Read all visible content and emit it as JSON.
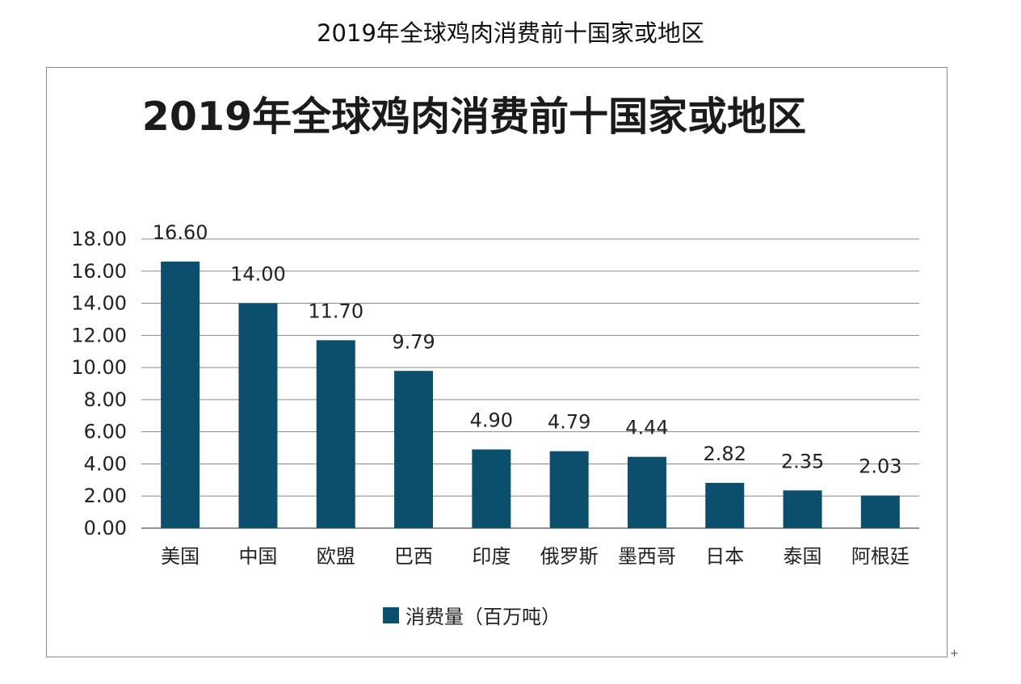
{
  "page_title": "2019年全球鸡肉消费前十国家或地区",
  "chart_data": {
    "type": "bar",
    "title": "2019年全球鸡肉消费前十国家或地区",
    "categories": [
      "美国",
      "中国",
      "欧盟",
      "巴西",
      "印度",
      "俄罗斯",
      "墨西哥",
      "日本",
      "泰国",
      "阿根廷"
    ],
    "series": [
      {
        "name": "消费量（百万吨）",
        "values": [
          16.6,
          14.0,
          11.7,
          9.79,
          4.9,
          4.79,
          4.44,
          2.82,
          2.35,
          2.03
        ]
      }
    ],
    "data_labels": [
      "16.60",
      "14.00",
      "11.70",
      "9.79",
      "4.90",
      "4.79",
      "4.44",
      "2.82",
      "2.35",
      "2.03"
    ],
    "y_ticks": [
      "0.00",
      "2.00",
      "4.00",
      "6.00",
      "8.00",
      "10.00",
      "12.00",
      "14.00",
      "16.00",
      "18.00"
    ],
    "ylim": [
      0,
      18
    ],
    "xlabel": "",
    "ylabel": "",
    "grid": true,
    "legend_position": "bottom",
    "bar_color": "#0b4f6c"
  },
  "corner_mark": "+"
}
